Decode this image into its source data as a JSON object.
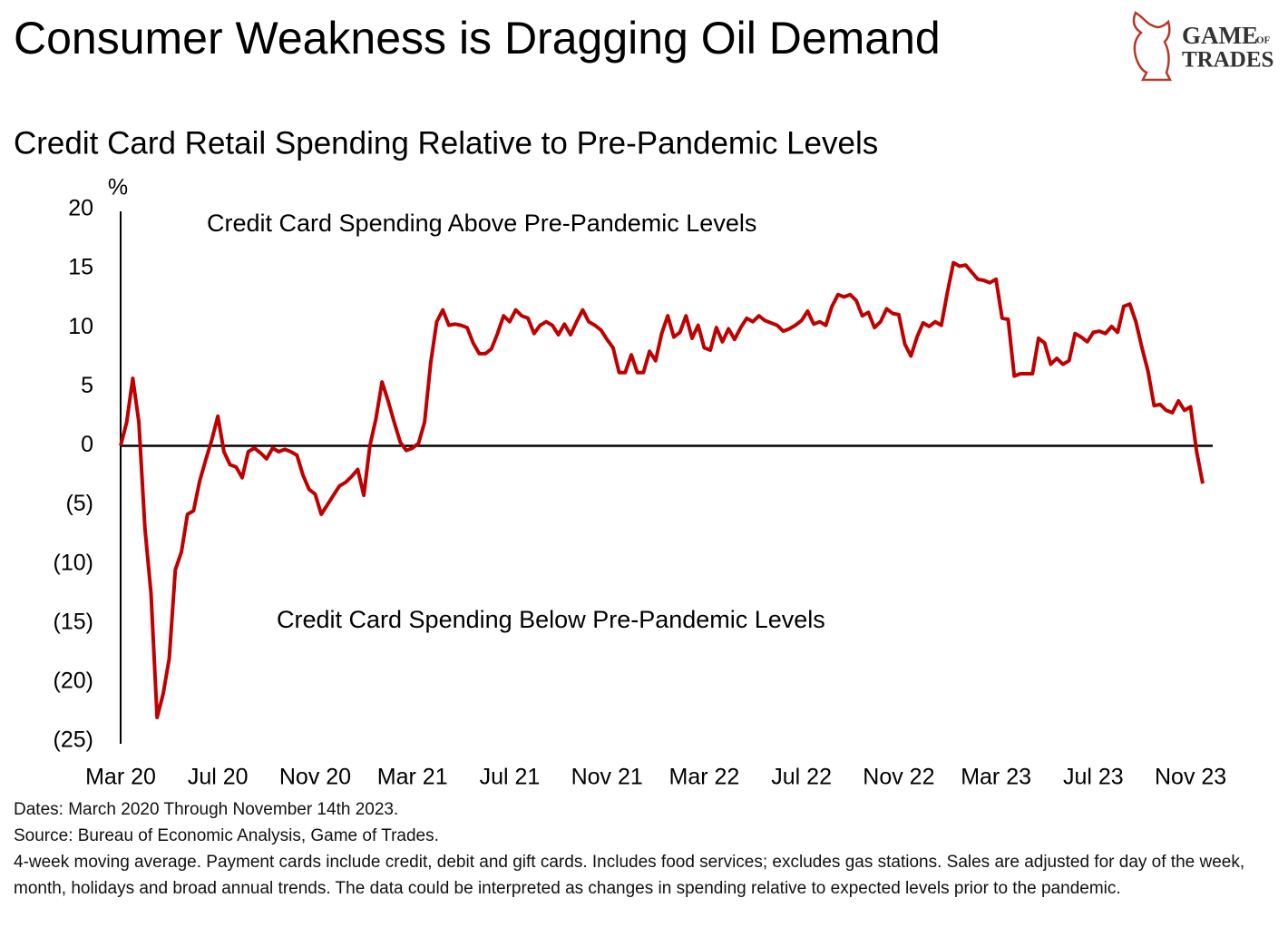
{
  "chart_data": {
    "type": "line",
    "title": "Consumer Weakness is Dragging Oil Demand",
    "subtitle": "Credit Card Retail Spending Relative to Pre-Pandemic Levels",
    "y_axis_label": "%",
    "annotations": [
      "Credit Card Spending Above Pre-Pandemic Levels",
      "Credit Card Spending Below Pre-Pandemic Levels"
    ],
    "logo": [
      "GAME",
      "OF",
      "TRADES"
    ],
    "notes": [
      "Dates: March 2020 Through November 14th 2023.",
      "Source: Bureau of Economic Analysis, Game of Trades.",
      "4-week moving average. Payment cards include credit, debit and gift cards. Includes food services; excludes gas stations. Sales are adjusted for day of the week, month, holidays and broad annual trends. The data could be interpreted as changes in spending relative to expected levels prior to the pandemic."
    ],
    "color": "#c00000",
    "ylim": [
      -25,
      20
    ],
    "yticks": [
      20,
      15,
      10,
      5,
      0,
      {
        "value": -5,
        "label": "(5)"
      },
      {
        "value": -10,
        "label": "(10)"
      },
      {
        "value": -15,
        "label": "(15)"
      },
      {
        "value": -20,
        "label": "(20)"
      },
      {
        "value": -25,
        "label": "(25)"
      }
    ],
    "grid": false,
    "categories": [
      "Mar 20",
      null,
      null,
      null,
      null,
      null,
      null,
      null,
      null,
      null,
      null,
      null,
      null,
      null,
      null,
      null,
      "Jul 20",
      null,
      null,
      null,
      null,
      null,
      null,
      null,
      null,
      null,
      null,
      null,
      null,
      null,
      null,
      null,
      "Nov 20",
      null,
      null,
      null,
      null,
      null,
      null,
      null,
      null,
      null,
      null,
      null,
      null,
      null,
      null,
      null,
      "Mar 21",
      null,
      null,
      null,
      null,
      null,
      null,
      null,
      null,
      null,
      null,
      null,
      null,
      null,
      null,
      null,
      "Jul 21",
      null,
      null,
      null,
      null,
      null,
      null,
      null,
      null,
      null,
      null,
      null,
      null,
      null,
      null,
      null,
      "Nov 21",
      null,
      null,
      null,
      null,
      null,
      null,
      null,
      null,
      null,
      null,
      null,
      null,
      null,
      null,
      null,
      "Mar 22",
      null,
      null,
      null,
      null,
      null,
      null,
      null,
      null,
      null,
      null,
      null,
      null,
      null,
      null,
      null,
      "Jul 22",
      null,
      null,
      null,
      null,
      null,
      null,
      null,
      null,
      null,
      null,
      null,
      null,
      null,
      null,
      null,
      "Nov 22",
      null,
      null,
      null,
      null,
      null,
      null,
      null,
      null,
      null,
      null,
      null,
      null,
      null,
      null,
      null,
      "Mar 23",
      null,
      null,
      null,
      null,
      null,
      null,
      null,
      null,
      null,
      null,
      null,
      null,
      null,
      null,
      null,
      "Jul 23",
      null,
      null,
      null,
      null,
      null,
      null,
      null,
      null,
      null,
      null,
      null,
      null,
      null,
      null,
      null,
      "Nov 23",
      null,
      null
    ],
    "values": [
      0,
      2,
      5.7,
      2,
      -7,
      -12.5,
      -23,
      -21,
      -18,
      -10.5,
      -9,
      -5.8,
      -5.5,
      -3,
      -1.2,
      0.5,
      2.5,
      -0.5,
      -1.6,
      -1.8,
      -2.7,
      -0.5,
      -0.2,
      -0.6,
      -1.1,
      -0.2,
      -0.5,
      -0.3,
      -0.5,
      -0.8,
      -2.5,
      -3.7,
      -4.1,
      -5.8,
      -5,
      -4.2,
      -3.4,
      -3.1,
      -2.6,
      -2,
      -4.2,
      0,
      2.3,
      5.4,
      3.8,
      2,
      0.3,
      -0.4,
      -0.2,
      0.2,
      2,
      7,
      10.5,
      11.5,
      10.2,
      10.3,
      10.2,
      10,
      8.7,
      7.8,
      7.8,
      8.2,
      9.5,
      11,
      10.5,
      11.5,
      11,
      10.8,
      9.5,
      10.2,
      10.5,
      10.2,
      9.4,
      10.3,
      9.4,
      10.5,
      11.5,
      10.5,
      10.2,
      9.8,
      9,
      8.3,
      6.2,
      6.2,
      7.7,
      6.2,
      6.2,
      8,
      7.2,
      9.5,
      11,
      9.2,
      9.6,
      11,
      9.1,
      10.2,
      8.3,
      8.1,
      10,
      8.8,
      9.9,
      9,
      10,
      10.8,
      10.5,
      11,
      10.6,
      10.4,
      10.2,
      9.7,
      9.9,
      10.2,
      10.6,
      11.4,
      10.3,
      10.5,
      10.2,
      11.8,
      12.8,
      12.6,
      12.8,
      12.3,
      11,
      11.3,
      10,
      10.5,
      11.6,
      11.2,
      11.1,
      8.6,
      7.6,
      9.2,
      10.4,
      10.1,
      10.5,
      10.2,
      13,
      15.5,
      15.2,
      15.3,
      14.7,
      14.1,
      14,
      13.8,
      14.1,
      10.8,
      10.7,
      5.9,
      6.1,
      6.1,
      6.1,
      9.1,
      8.7,
      6.9,
      7.4,
      6.9,
      7.2,
      9.5,
      9.2,
      8.8,
      9.6,
      9.7,
      9.5,
      10.1,
      9.6,
      11.8,
      12,
      10.5,
      8.3,
      6.3,
      3.4,
      3.5,
      3,
      2.8,
      3.8,
      3,
      3.3,
      -0.5,
      -3.2
    ]
  }
}
